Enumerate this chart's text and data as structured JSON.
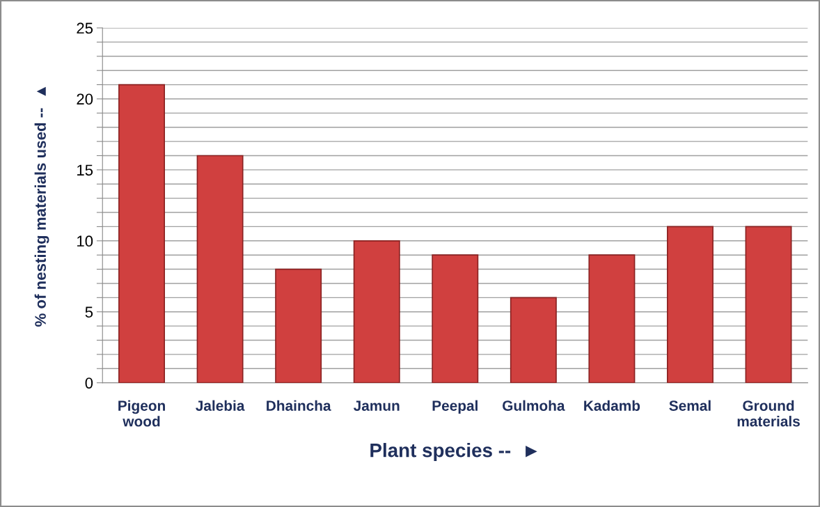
{
  "chart_data": {
    "type": "bar",
    "xlabel": "Plant species --  ►",
    "ylabel": "% of nesting materials used --  ▲",
    "categories": [
      "Pigeon\nwood",
      "Jalebia",
      "Dhaincha",
      "Jamun",
      "Peepal",
      "Gulmoha",
      "Kadamb",
      "Semal",
      "Ground\nmaterials"
    ],
    "values": [
      21,
      16,
      8,
      10,
      9,
      6,
      9,
      11,
      11
    ],
    "color": "#d0403f",
    "ylim": [
      0,
      25
    ],
    "yticks": [
      0,
      {
        "value": 1,
        "label": null
      },
      {
        "value": 2,
        "label": null
      },
      {
        "value": 3,
        "label": null
      },
      {
        "value": 4,
        "label": null
      },
      5,
      {
        "value": 6,
        "label": null
      },
      {
        "value": 7,
        "label": null
      },
      {
        "value": 8,
        "label": null
      },
      {
        "value": 9,
        "label": null
      },
      10,
      {
        "value": 11,
        "label": null
      },
      {
        "value": 12,
        "label": null
      },
      {
        "value": 13,
        "label": null
      },
      {
        "value": 14,
        "label": null
      },
      15,
      {
        "value": 16,
        "label": null
      },
      {
        "value": 17,
        "label": null
      },
      {
        "value": 18,
        "label": null
      },
      {
        "value": 19,
        "label": null
      },
      20,
      {
        "value": 21,
        "label": null
      },
      {
        "value": 22,
        "label": null
      },
      {
        "value": 23,
        "label": null
      },
      {
        "value": 24,
        "label": null
      },
      25
    ],
    "grid": "y"
  }
}
